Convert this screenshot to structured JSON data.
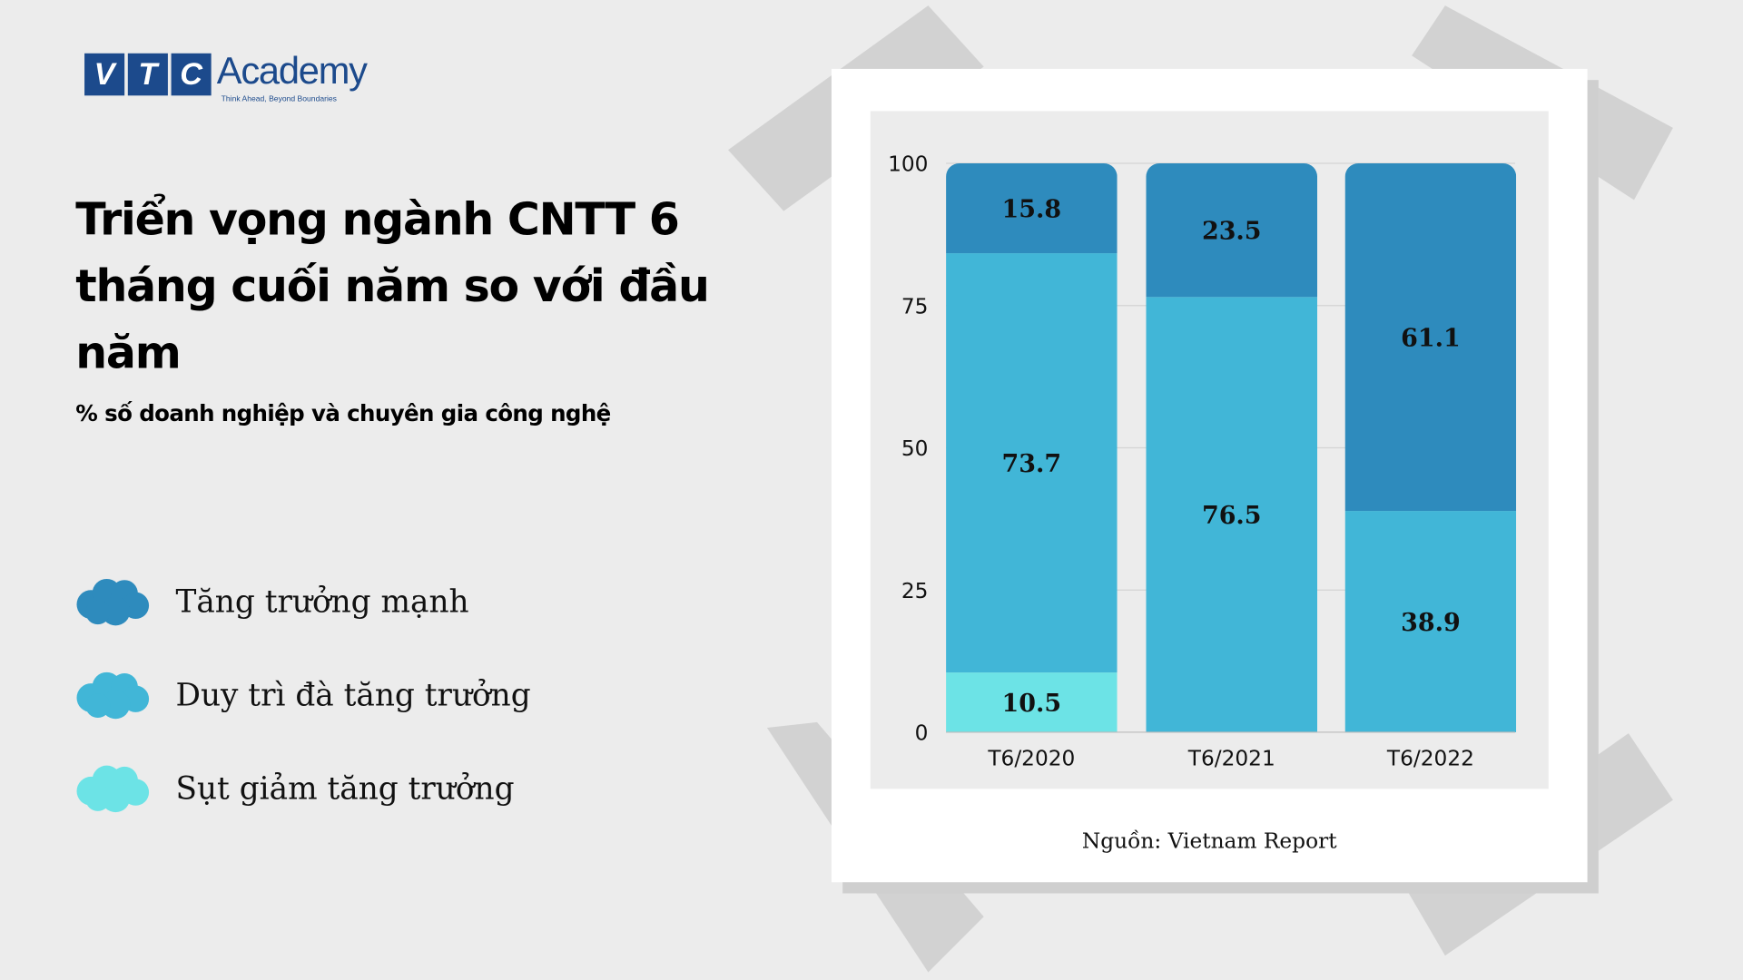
{
  "logo": {
    "letters": [
      "V",
      "T",
      "C"
    ],
    "word": "Academy",
    "tagline": "Think Ahead, Beyond Boundaries"
  },
  "title": "Triển vọng ngành CNTT 6 tháng cuối năm so với đầu năm",
  "subtitle": "% số doanh nghiệp và chuyên gia công nghệ",
  "source": "Nguồn: Vietnam Report",
  "colors": {
    "strong": "#2e8bbd",
    "maintain": "#41b6d7",
    "decline": "#6ce3e6",
    "background": "#ececec"
  },
  "legend": [
    {
      "label": "Tăng trưởng mạnh",
      "color": "#2e8bbd",
      "icon": "cloud-icon"
    },
    {
      "label": "Duy trì đà tăng trưởng",
      "color": "#41b6d7",
      "icon": "cloud-icon"
    },
    {
      "label": "Sụt giảm tăng trưởng",
      "color": "#6ce3e6",
      "icon": "cloud-icon"
    }
  ],
  "chart_data": {
    "type": "bar",
    "stacked": true,
    "categories": [
      "T6/2020",
      "T6/2021",
      "T6/2022"
    ],
    "series": [
      {
        "name": "Sụt giảm tăng trưởng",
        "color": "#6ce3e6",
        "values": [
          10.5,
          0,
          0
        ]
      },
      {
        "name": "Duy trì đà tăng trưởng",
        "color": "#41b6d7",
        "values": [
          73.7,
          76.5,
          38.9
        ]
      },
      {
        "name": "Tăng trưởng mạnh",
        "color": "#2e8bbd",
        "values": [
          15.8,
          23.5,
          61.1
        ]
      }
    ],
    "ylim": [
      0,
      100
    ],
    "yticks": [
      0,
      25,
      50,
      75,
      100
    ],
    "grid": true,
    "legend": "left"
  }
}
